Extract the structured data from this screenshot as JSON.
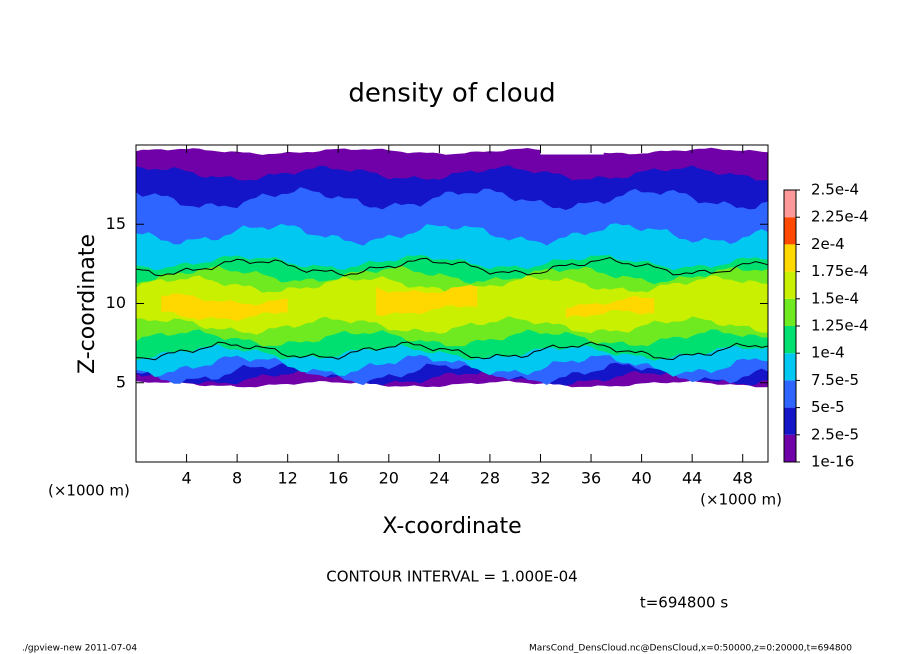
{
  "chart_data": {
    "type": "contour",
    "title": "density of cloud",
    "x_label": "X-coordinate",
    "y_label": "Z-coordinate",
    "x_units": [
      "(×1000 m)",
      "(×1000 m)"
    ],
    "xlim": [
      0,
      50
    ],
    "xticks": [
      4,
      8,
      12,
      16,
      20,
      24,
      28,
      32,
      36,
      40,
      44,
      48
    ],
    "ylim": [
      0,
      20
    ],
    "yticks": [
      5,
      10,
      15
    ],
    "colorbar": {
      "ticks": [
        {
          "value": 1e-16,
          "label": "1e-16"
        },
        {
          "value": 2.5e-05,
          "label": "2.5e-5"
        },
        {
          "value": 5e-05,
          "label": "5e-5"
        },
        {
          "value": 7.5e-05,
          "label": "7.5e-5"
        },
        {
          "value": 0.0001,
          "label": "1e-4"
        },
        {
          "value": 0.000125,
          "label": "1.25e-4"
        },
        {
          "value": 0.00015,
          "label": "1.5e-4"
        },
        {
          "value": 0.000175,
          "label": "1.75e-4"
        },
        {
          "value": 0.0002,
          "label": "2e-4"
        },
        {
          "value": 0.000225,
          "label": "2.25e-4"
        },
        {
          "value": 0.00025,
          "label": "2.5e-4"
        }
      ],
      "colors": [
        "#7000a8",
        "#1414c8",
        "#2e64ff",
        "#00c8f0",
        "#00e070",
        "#70ea20",
        "#c8f000",
        "#ffd800",
        "#ff4800",
        "#ff9898"
      ]
    },
    "contour_interval": "CONTOUR INTERVAL = 1.000E-04",
    "time_label": "t=694800 s",
    "footer_left": "./gpview-new  2011-07-04",
    "footer_right": "MarsCond_DensCloud.nc@DensCloud,x=0:50000,z=0:20000,t=694800"
  }
}
